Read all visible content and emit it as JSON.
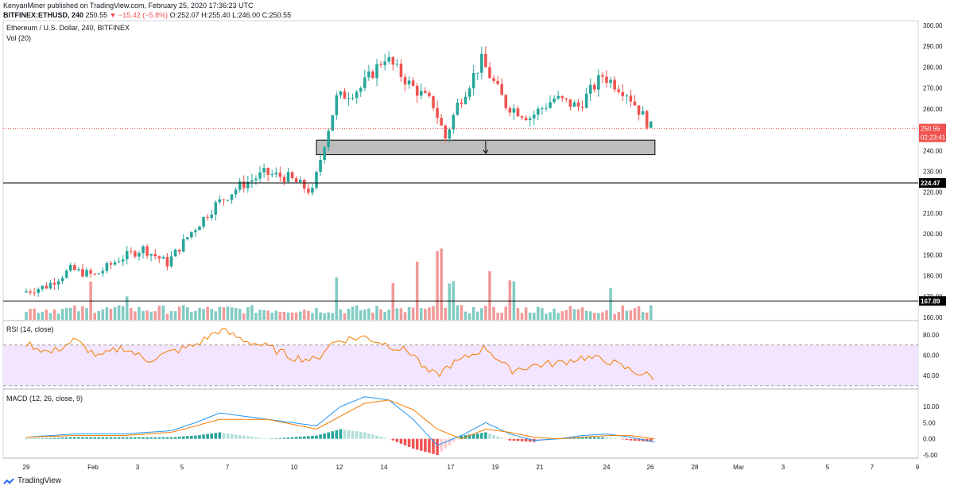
{
  "header": {
    "published": "KenyanMiner published on TradingView.com, February 25, 2020 17:36:23 UTC",
    "symbol": "BITFINEX:ETHUSD, 240",
    "last": "250.55",
    "change": "▼ −15.42 (−5.8%)",
    "ohlc": "O:252.07 H:255.40 L:246.00 C:250.55"
  },
  "legend": {
    "title": "Ethereum / U.S. Dollar, 240, BITFINEX",
    "vol": "Vol (20)",
    "rsi": "RSI (14, close)",
    "macd": "MACD (12, 26, close, 9)"
  },
  "brand": {
    "name": "TradingView",
    "icon": "tradingview-logo-icon"
  },
  "colors": {
    "up": "#26a69a",
    "down": "#ef5350",
    "rsi_line": "#f57c00",
    "rsi_band": "#f3e5ff",
    "macd": "#2196f3",
    "signal": "#f57c00",
    "hline": "#000000",
    "price_line": "#ef5350"
  },
  "chart_data": [
    {
      "type": "candlestick",
      "title": "Ethereum / U.S. Dollar, 240, BITFINEX",
      "x_ticks": [
        "29",
        "Feb",
        "3",
        "5",
        "7",
        "10",
        "12",
        "14",
        "17",
        "19",
        "21",
        "24",
        "26",
        "28",
        "Mar",
        "3",
        "5",
        "7",
        "9"
      ],
      "y_ticks": [
        "300.00",
        "290.00",
        "280.00",
        "270.00",
        "260.00",
        "250.00",
        "240.00",
        "230.00",
        "220.00",
        "210.00",
        "200.00",
        "190.00",
        "180.00",
        "170.00",
        "160.00"
      ],
      "ylim": [
        157,
        302
      ],
      "anchors": [
        {
          "day": 0,
          "price": 172
        },
        {
          "day": 1,
          "price": 175
        },
        {
          "day": 2,
          "price": 183
        },
        {
          "day": 3,
          "price": 180
        },
        {
          "day": 4,
          "price": 188
        },
        {
          "day": 5,
          "price": 193
        },
        {
          "day": 6,
          "price": 186
        },
        {
          "day": 7,
          "price": 201
        },
        {
          "day": 8,
          "price": 214
        },
        {
          "day": 9,
          "price": 223
        },
        {
          "day": 10,
          "price": 229
        },
        {
          "day": 11,
          "price": 227
        },
        {
          "day": 12,
          "price": 220
        },
        {
          "day": 12.5,
          "price": 244
        },
        {
          "day": 13,
          "price": 265
        },
        {
          "day": 14,
          "price": 270
        },
        {
          "day": 15,
          "price": 285
        },
        {
          "day": 16,
          "price": 272
        },
        {
          "day": 17,
          "price": 262
        },
        {
          "day": 17.5,
          "price": 246
        },
        {
          "day": 18,
          "price": 262
        },
        {
          "day": 19,
          "price": 283
        },
        {
          "day": 20,
          "price": 262
        },
        {
          "day": 21,
          "price": 256
        },
        {
          "day": 22,
          "price": 265
        },
        {
          "day": 23,
          "price": 261
        },
        {
          "day": 24,
          "price": 276
        },
        {
          "day": 25,
          "price": 268
        },
        {
          "day": 26,
          "price": 251
        }
      ],
      "last_price": {
        "value": 250.55,
        "label": "250.55",
        "countdown": "02:23:41"
      },
      "hlines": [
        {
          "value": 224.47,
          "label": "224.47"
        },
        {
          "value": 167.89,
          "label": "167.89"
        }
      ],
      "zone": {
        "from_day": 12,
        "to_day": 26,
        "low": 238,
        "high": 245
      }
    },
    {
      "type": "bar",
      "title": "Vol (20)",
      "peaks": [
        {
          "day": 2.7,
          "value": 0.58
        },
        {
          "day": 4.2,
          "value": 0.35
        },
        {
          "day": 12.8,
          "value": 0.62
        },
        {
          "day": 15.2,
          "value": 0.55
        },
        {
          "day": 16.2,
          "value": 0.85
        },
        {
          "day": 17.1,
          "value": 1.0
        },
        {
          "day": 17.6,
          "value": 0.55
        },
        {
          "day": 19.2,
          "value": 0.72
        },
        {
          "day": 20.1,
          "value": 0.55
        },
        {
          "day": 24.2,
          "value": 0.45
        }
      ]
    },
    {
      "type": "line",
      "title": "RSI (14, close)",
      "y_ticks": [
        "80.00",
        "60.00",
        "40.00"
      ],
      "ylim": [
        25,
        95
      ],
      "band": [
        30,
        70
      ],
      "points": [
        [
          0,
          72
        ],
        [
          1,
          62
        ],
        [
          2,
          75
        ],
        [
          3,
          58
        ],
        [
          4,
          68
        ],
        [
          5,
          55
        ],
        [
          6,
          63
        ],
        [
          7,
          70
        ],
        [
          8,
          85
        ],
        [
          9,
          75
        ],
        [
          10,
          68
        ],
        [
          11,
          58
        ],
        [
          12,
          55
        ],
        [
          12.5,
          70
        ],
        [
          13,
          75
        ],
        [
          14,
          78
        ],
        [
          15,
          70
        ],
        [
          16,
          62
        ],
        [
          16.5,
          45
        ],
        [
          17,
          40
        ],
        [
          17.5,
          50
        ],
        [
          18,
          55
        ],
        [
          19,
          68
        ],
        [
          20,
          45
        ],
        [
          21,
          50
        ],
        [
          22,
          52
        ],
        [
          23,
          58
        ],
        [
          24,
          55
        ],
        [
          25,
          45
        ],
        [
          26,
          38
        ]
      ]
    },
    {
      "type": "line",
      "title": "MACD (12, 26, close, 9)",
      "y_ticks": [
        "10.00",
        "5.00",
        "0.00",
        "-5.00"
      ],
      "ylim": [
        -7,
        15
      ],
      "macd": [
        [
          0,
          0.5
        ],
        [
          2,
          1.5
        ],
        [
          4,
          1.5
        ],
        [
          6,
          2.5
        ],
        [
          7,
          5
        ],
        [
          8,
          8
        ],
        [
          10,
          6
        ],
        [
          12,
          4
        ],
        [
          13,
          10
        ],
        [
          14,
          13
        ],
        [
          15,
          12
        ],
        [
          16,
          6
        ],
        [
          17,
          -2
        ],
        [
          18,
          1
        ],
        [
          19,
          5
        ],
        [
          20,
          1.5
        ],
        [
          21,
          -0.5
        ],
        [
          22,
          0
        ],
        [
          23,
          1
        ],
        [
          24,
          1.5
        ],
        [
          25,
          0.5
        ],
        [
          26,
          -1
        ]
      ],
      "signal": [
        [
          0,
          0.5
        ],
        [
          2,
          1
        ],
        [
          4,
          1
        ],
        [
          6,
          2
        ],
        [
          8,
          6
        ],
        [
          10,
          6
        ],
        [
          12,
          3
        ],
        [
          13,
          7
        ],
        [
          14,
          11
        ],
        [
          15,
          12
        ],
        [
          16,
          9
        ],
        [
          17,
          3
        ],
        [
          18,
          0
        ],
        [
          19,
          3
        ],
        [
          20,
          2
        ],
        [
          21,
          0.5
        ],
        [
          22,
          0
        ],
        [
          23,
          0.5
        ],
        [
          24,
          1
        ],
        [
          25,
          1
        ],
        [
          26,
          0
        ]
      ]
    }
  ]
}
